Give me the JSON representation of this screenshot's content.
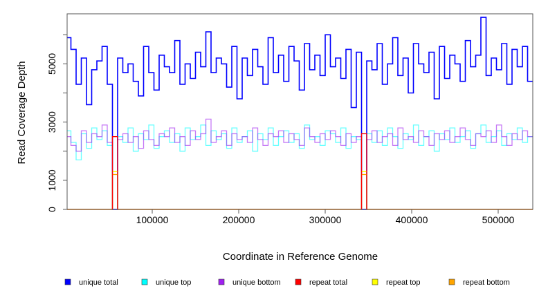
{
  "chart_data": {
    "type": "line",
    "title": "",
    "xlabel": "Coordinate in Reference Genome",
    "ylabel": "Read Coverage Depth",
    "xlim": [
      1600,
      540000
    ],
    "ylim": [
      0,
      6720
    ],
    "x_start": 0,
    "x_step": 6000,
    "x_ticks": [
      100000,
      200000,
      300000,
      400000,
      500000
    ],
    "x_tick_labels": [
      "100000",
      "200000",
      "300000",
      "400000",
      "500000"
    ],
    "y_ticks": [
      0,
      1000,
      2000,
      3000,
      4000,
      5000,
      6000
    ],
    "y_tick_labels": [
      "0",
      "1000",
      "3000",
      "5000"
    ],
    "y_labeled_ticks": [
      0,
      1000,
      3000,
      5000
    ],
    "legend_position": "bottom",
    "series": [
      {
        "name": "unique total",
        "color": "#0000FF",
        "values": [
          5900,
          5500,
          4300,
          5200,
          3600,
          4800,
          5100,
          5600,
          4300,
          0,
          5200,
          4700,
          5000,
          4400,
          3900,
          5600,
          4700,
          4100,
          5300,
          4900,
          4700,
          5800,
          4300,
          5000,
          4500,
          5400,
          4900,
          6100,
          4700,
          5200,
          5000,
          4200,
          5600,
          3800,
          5200,
          4600,
          5500,
          4900,
          4300,
          5900,
          4700,
          5300,
          4400,
          5600,
          5100,
          4100,
          5700,
          4800,
          5300,
          4600,
          6000,
          4900,
          5200,
          4500,
          5500,
          3500,
          5400,
          0,
          5100,
          4800,
          5700,
          4300,
          5000,
          5900,
          4600,
          5200,
          4000,
          5700,
          5000,
          4700,
          5400,
          3800,
          5600,
          4500,
          5300,
          5000,
          4400,
          5800,
          4900,
          5300,
          6600,
          4600,
          5200,
          4800,
          5700,
          4300,
          5500,
          4900,
          5600,
          4400
        ]
      },
      {
        "name": "unique top",
        "color": "#00FFFF",
        "values": [
          2700,
          2300,
          1700,
          2600,
          2100,
          2800,
          2400,
          2700,
          2200,
          0,
          2500,
          2300,
          2800,
          2000,
          2600,
          2400,
          2900,
          2100,
          2500,
          2700,
          2300,
          2600,
          2000,
          2800,
          2400,
          2500,
          2900,
          2200,
          2700,
          2400,
          2600,
          2100,
          2800,
          2300,
          2500,
          2700,
          2000,
          2600,
          2400,
          2800,
          2200,
          2500,
          2700,
          2300,
          2600,
          2100,
          2900,
          2400,
          2500,
          2200,
          2700,
          2600,
          2300,
          2800,
          2100,
          2500,
          2400,
          0,
          2600,
          2300,
          2700,
          2200,
          2800,
          2500,
          2100,
          2600,
          2400,
          2900,
          2200,
          2500,
          2700,
          2000,
          2600,
          2400,
          2800,
          2300,
          2500,
          2700,
          2100,
          2600,
          2900,
          2300,
          2500,
          2700,
          2200,
          2600,
          2400,
          2800,
          2300,
          2500
        ]
      },
      {
        "name": "unique bottom",
        "color": "#A020F0",
        "values": [
          2500,
          2200,
          2000,
          2700,
          2300,
          2600,
          2500,
          2900,
          2300,
          0,
          2400,
          2600,
          2300,
          2500,
          2100,
          2700,
          2400,
          2200,
          2600,
          2500,
          2800,
          2300,
          2500,
          2200,
          2700,
          2400,
          2600,
          3100,
          2300,
          2500,
          2700,
          2200,
          2600,
          2400,
          2500,
          2300,
          2800,
          2400,
          2200,
          2600,
          2500,
          2700,
          2300,
          2600,
          2400,
          2200,
          2800,
          2500,
          2300,
          2600,
          2400,
          2700,
          2500,
          2200,
          2600,
          2300,
          2500,
          0,
          2400,
          2700,
          2300,
          2500,
          2600,
          2200,
          2800,
          2400,
          2500,
          2300,
          2700,
          2500,
          2200,
          2600,
          2400,
          2700,
          2300,
          2500,
          2800,
          2400,
          2200,
          2600,
          2500,
          2700,
          2300,
          2900,
          2500,
          2200,
          2600,
          2400,
          2700,
          2500
        ]
      },
      {
        "name": "repeat total",
        "color": "#FF0000",
        "values": [
          0,
          0,
          0,
          0,
          0,
          0,
          0,
          0,
          0,
          2500,
          0,
          0,
          0,
          0,
          0,
          0,
          0,
          0,
          0,
          0,
          0,
          0,
          0,
          0,
          0,
          0,
          0,
          0,
          0,
          0,
          0,
          0,
          0,
          0,
          0,
          0,
          0,
          0,
          0,
          0,
          0,
          0,
          0,
          0,
          0,
          0,
          0,
          0,
          0,
          0,
          0,
          0,
          0,
          0,
          0,
          0,
          0,
          2600,
          0,
          0,
          0,
          0,
          0,
          0,
          0,
          0,
          0,
          0,
          0,
          0,
          0,
          0,
          0,
          0,
          0,
          0,
          0,
          0,
          0,
          0,
          0,
          0,
          0,
          0,
          0,
          0,
          0,
          0,
          0,
          0
        ]
      },
      {
        "name": "repeat top",
        "color": "#FFFF00",
        "values": [
          0,
          0,
          0,
          0,
          0,
          0,
          0,
          0,
          0,
          1300,
          0,
          0,
          0,
          0,
          0,
          0,
          0,
          0,
          0,
          0,
          0,
          0,
          0,
          0,
          0,
          0,
          0,
          0,
          0,
          0,
          0,
          0,
          0,
          0,
          0,
          0,
          0,
          0,
          0,
          0,
          0,
          0,
          0,
          0,
          0,
          0,
          0,
          0,
          0,
          0,
          0,
          0,
          0,
          0,
          0,
          0,
          0,
          1300,
          0,
          0,
          0,
          0,
          0,
          0,
          0,
          0,
          0,
          0,
          0,
          0,
          0,
          0,
          0,
          0,
          0,
          0,
          0,
          0,
          0,
          0,
          0,
          0,
          0,
          0,
          0,
          0,
          0,
          0,
          0,
          0
        ]
      },
      {
        "name": "repeat bottom",
        "color": "#FFA500",
        "values": [
          0,
          0,
          0,
          0,
          0,
          0,
          0,
          0,
          0,
          1200,
          0,
          0,
          0,
          0,
          0,
          0,
          0,
          0,
          0,
          0,
          0,
          0,
          0,
          0,
          0,
          0,
          0,
          0,
          0,
          0,
          0,
          0,
          0,
          0,
          0,
          0,
          0,
          0,
          0,
          0,
          0,
          0,
          0,
          0,
          0,
          0,
          0,
          0,
          0,
          0,
          0,
          0,
          0,
          0,
          0,
          0,
          0,
          1200,
          0,
          0,
          0,
          0,
          0,
          0,
          0,
          0,
          0,
          0,
          0,
          0,
          0,
          0,
          0,
          0,
          0,
          0,
          0,
          0,
          0,
          0,
          0,
          0,
          0,
          0,
          0,
          0,
          0,
          0,
          0,
          0
        ]
      }
    ]
  }
}
